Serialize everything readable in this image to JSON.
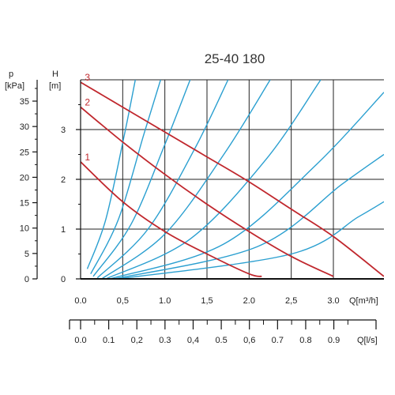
{
  "chart_data": {
    "type": "line",
    "title": "25-40 180",
    "left_axis": {
      "symbol": "p",
      "unit": "[kPa]",
      "ticks": [
        "0",
        "5",
        "10",
        "15",
        "20",
        "25",
        "30",
        "35"
      ],
      "range": [
        0,
        39.2
      ]
    },
    "head_axis": {
      "symbol": "H",
      "unit": "[m]",
      "ticks": [
        "0",
        "1",
        "2",
        "3"
      ],
      "range": [
        0,
        4
      ]
    },
    "flow_axis_m3h": {
      "label": "Q[m³/h]",
      "ticks": [
        "0.0",
        "0,5",
        "1.0",
        "1,5",
        "2.0",
        "2,5",
        "3.0"
      ],
      "range": [
        0,
        3.6
      ]
    },
    "flow_axis_ls": {
      "label": "Q[l/s]",
      "ticks": [
        "0.0",
        "0.1",
        "0,2",
        "0.3",
        "0,4",
        "0.5",
        "0,6",
        "0.7",
        "0.8",
        "0.9"
      ],
      "range": [
        0,
        1.05
      ]
    },
    "grid": true,
    "series": [
      {
        "name": "1",
        "color": "#c0272d",
        "x": [
          0,
          0.5,
          1.0,
          1.5,
          2.0,
          2.15
        ],
        "y": [
          2.35,
          1.55,
          0.95,
          0.5,
          0.1,
          0.05
        ]
      },
      {
        "name": "2",
        "color": "#c0272d",
        "x": [
          0,
          0.5,
          1.0,
          1.5,
          2.0,
          2.5,
          3.0
        ],
        "y": [
          3.45,
          2.75,
          2.1,
          1.5,
          0.95,
          0.45,
          0.05
        ]
      },
      {
        "name": "3",
        "color": "#c0272d",
        "x": [
          0,
          0.5,
          1.0,
          1.5,
          2.0,
          2.5,
          3.0,
          3.6
        ],
        "y": [
          3.95,
          3.45,
          2.95,
          2.45,
          1.95,
          1.4,
          0.85,
          0.05
        ]
      }
    ],
    "system_curves": {
      "color": "#2a9fd0",
      "curves": [
        {
          "x": [
            0.08,
            0.3,
            0.52,
            0.65
          ],
          "y": [
            0.2,
            1.2,
            2.9,
            4.0
          ]
        },
        {
          "x": [
            0.12,
            0.45,
            0.75,
            0.95
          ],
          "y": [
            0.1,
            1.2,
            2.9,
            4.0
          ]
        },
        {
          "x": [
            0.15,
            0.6,
            1.0,
            1.3
          ],
          "y": [
            0.05,
            1.1,
            2.7,
            4.0
          ]
        },
        {
          "x": [
            0.2,
            0.8,
            1.35,
            1.75
          ],
          "y": [
            0.02,
            1.0,
            2.6,
            4.0
          ]
        },
        {
          "x": [
            0.25,
            1.0,
            1.7,
            2.25
          ],
          "y": [
            0.0,
            0.9,
            2.5,
            4.0
          ]
        },
        {
          "x": [
            0.3,
            1.3,
            2.2,
            2.85
          ],
          "y": [
            0.0,
            0.8,
            2.4,
            4.0
          ]
        },
        {
          "x": [
            0.35,
            1.7,
            2.8,
            3.6
          ],
          "y": [
            0.0,
            0.7,
            2.3,
            3.75
          ]
        },
        {
          "x": [
            0.4,
            2.1,
            3.1,
            3.6
          ],
          "y": [
            0.0,
            0.65,
            1.9,
            2.5
          ]
        },
        {
          "x": [
            0.45,
            2.5,
            3.3,
            3.6
          ],
          "y": [
            0.0,
            0.5,
            1.25,
            1.55
          ]
        }
      ]
    }
  }
}
